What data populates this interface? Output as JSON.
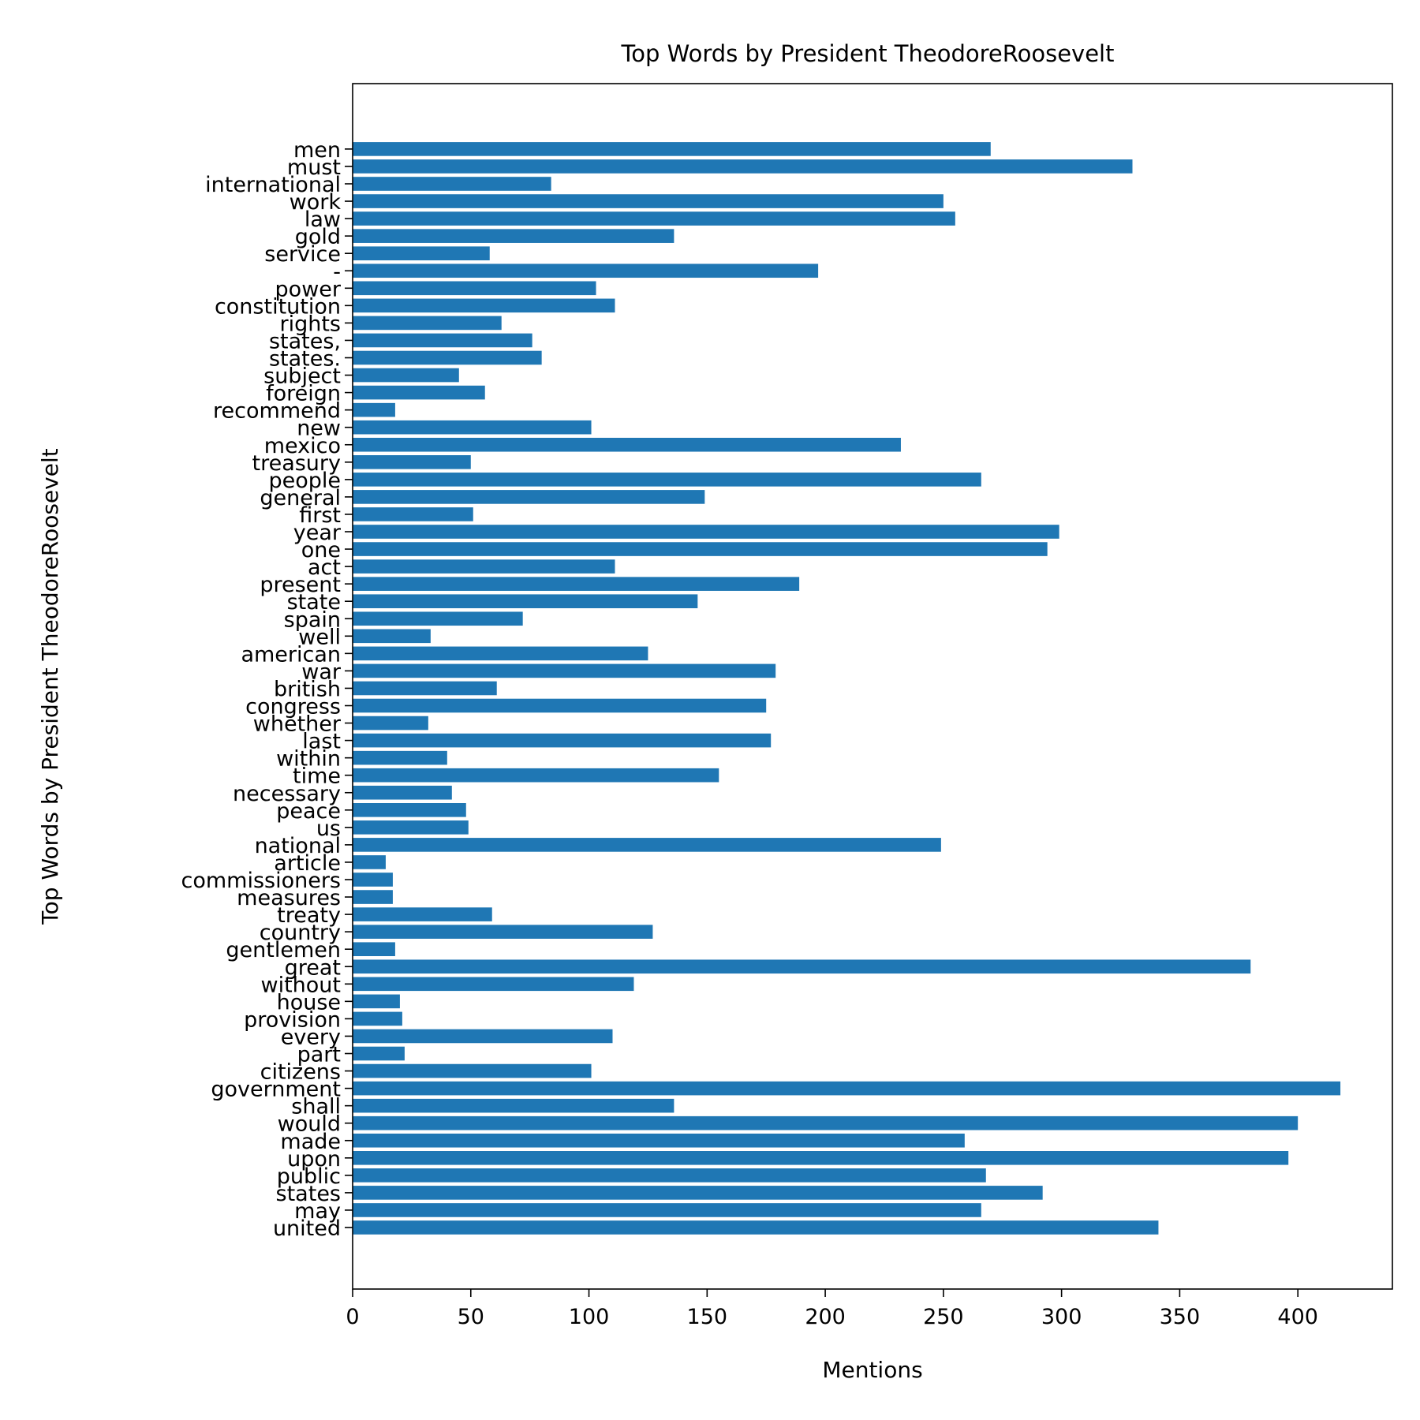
{
  "chart_data": {
    "type": "bar",
    "orientation": "horizontal",
    "title": "Top Words by President TheodoreRoosevelt",
    "xlabel": "Mentions",
    "ylabel": "Top Words by President TheodoreRoosevelt",
    "xlim": [
      0,
      440
    ],
    "xticks": [
      0,
      50,
      100,
      150,
      200,
      250,
      300,
      350,
      400
    ],
    "grid": false,
    "bar_color": "#1f77b4",
    "categories": [
      "united",
      "may",
      "states",
      "public",
      "upon",
      "made",
      "would",
      "shall",
      "government",
      "citizens",
      "part",
      "every",
      "provision",
      "house",
      "without",
      "great",
      "gentlemen",
      "country",
      "treaty",
      "measures",
      "commissioners",
      "article",
      "national",
      "us",
      "peace",
      "necessary",
      "time",
      "within",
      "last",
      "whether",
      "congress",
      "british",
      "war",
      "american",
      "well",
      "spain",
      "state",
      "present",
      "act",
      "one",
      "year",
      "first",
      "general",
      "people",
      "treasury",
      "mexico",
      "new",
      "recommend",
      "foreign",
      "subject",
      "states.",
      "states,",
      "rights",
      "constitution",
      "power",
      "-",
      "service",
      "gold",
      "law",
      "work",
      "international",
      "must",
      "men"
    ],
    "values": [
      341,
      266,
      292,
      268,
      396,
      259,
      400,
      136,
      418,
      101,
      22,
      110,
      21,
      20,
      119,
      380,
      18,
      127,
      59,
      17,
      17,
      14,
      249,
      49,
      48,
      42,
      155,
      40,
      177,
      32,
      175,
      61,
      179,
      125,
      33,
      72,
      146,
      189,
      111,
      294,
      299,
      51,
      149,
      266,
      50,
      232,
      101,
      18,
      56,
      45,
      80,
      76,
      63,
      111,
      103,
      197,
      58,
      136,
      255,
      250,
      84,
      330,
      270
    ]
  }
}
